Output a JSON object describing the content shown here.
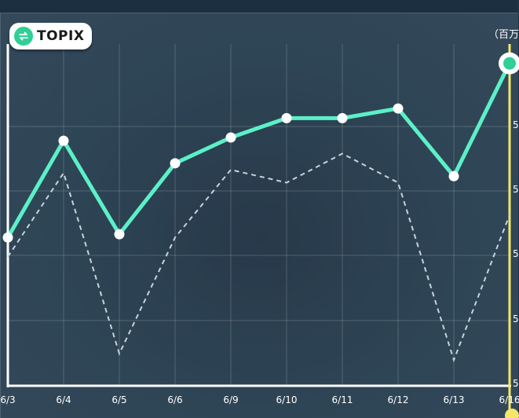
{
  "header": {
    "badge_label": "TOPIX",
    "unit_label": "（百万"
  },
  "colors": {
    "series_main": "#5cf0c8",
    "series_dashed": "#c6d3dd",
    "axis_left": "#ffffff",
    "axis_right": "#f5e66a",
    "accent": "#2fcf97"
  },
  "chart_data": {
    "type": "line",
    "categories": [
      "6/3",
      "6/4",
      "6/5",
      "6/6",
      "6/9",
      "6/10",
      "6/11",
      "6/12",
      "6/13",
      "6/16"
    ],
    "series": [
      {
        "values": [
          26.0,
          41.0,
          26.5,
          37.5,
          41.5,
          44.5,
          44.5,
          46.0,
          35.5,
          53.0
        ]
      },
      {
        "values": [
          23.0,
          36.0,
          8.0,
          26.0,
          36.5,
          34.5,
          39.0,
          34.5,
          7.0,
          29.5
        ]
      }
    ],
    "y_tick_labels": [
      "5",
      "5",
      "5",
      "5",
      "5",
      "5"
    ],
    "ylim": [
      3,
      56
    ],
    "grid": true,
    "legend": "none"
  }
}
